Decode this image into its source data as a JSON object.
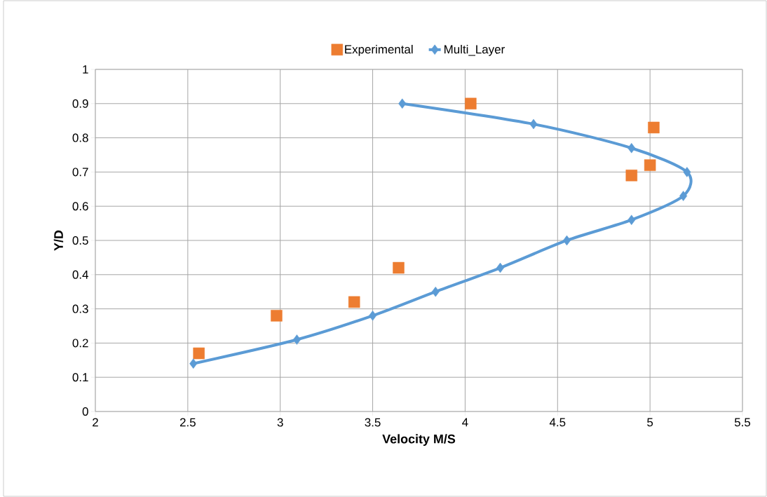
{
  "chart_data": {
    "type": "line",
    "xlabel": "Velocity M/S",
    "ylabel": "Y/D",
    "xlim": [
      2,
      5.5
    ],
    "ylim": [
      0,
      1
    ],
    "xticks": [
      2,
      2.5,
      3,
      3.5,
      4,
      4.5,
      5,
      5.5
    ],
    "yticks": [
      0,
      0.1,
      0.2,
      0.3,
      0.4,
      0.5,
      0.6,
      0.7,
      0.8,
      0.9,
      1
    ],
    "grid": true,
    "legend": "top",
    "series": [
      {
        "name": "Experimental",
        "type": "scatter",
        "marker": "square",
        "color": "#ed7d31",
        "x": [
          2.56,
          2.98,
          3.4,
          3.64,
          4.03,
          5.02,
          5.0,
          4.9
        ],
        "values": [
          0.17,
          0.28,
          0.32,
          0.42,
          0.9,
          0.83,
          0.72,
          0.69
        ]
      },
      {
        "name": "Multi_Layer",
        "marker": "diamond",
        "color": "#5b9bd5",
        "x": [
          2.53,
          3.09,
          3.5,
          3.84,
          4.19,
          4.55,
          4.9,
          5.18,
          5.2,
          4.9,
          4.37,
          3.66
        ],
        "values": [
          0.14,
          0.21,
          0.28,
          0.35,
          0.42,
          0.5,
          0.56,
          0.63,
          0.7,
          0.77,
          0.84,
          0.9
        ]
      }
    ]
  }
}
